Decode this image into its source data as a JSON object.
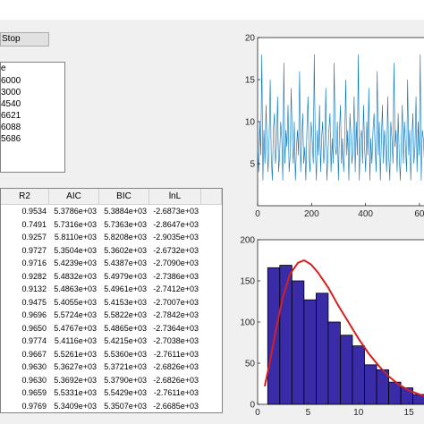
{
  "controls": {
    "stop_label": "Stop"
  },
  "listbox": {
    "header": "e",
    "items": [
      "6000",
      "3000",
      "4540",
      "6621",
      "6088",
      "5686"
    ]
  },
  "table": {
    "columns": [
      "R2",
      "AIC",
      "BIC",
      "lnL"
    ],
    "rows": [
      [
        "0.9534",
        "5.3786e+03",
        "5.3884e+03",
        "-2.6873e+03"
      ],
      [
        "0.7491",
        "5.7316e+03",
        "5.7363e+03",
        "-2.8647e+03"
      ],
      [
        "0.9257",
        "5.8110e+03",
        "5.8208e+03",
        "-2.9035e+03"
      ],
      [
        "0.9727",
        "5.3504e+03",
        "5.3602e+03",
        "-2.6732e+03"
      ],
      [
        "0.9716",
        "5.4239e+03",
        "5.4387e+03",
        "-2.7090e+03"
      ],
      [
        "0.9282",
        "5.4832e+03",
        "5.4979e+03",
        "-2.7386e+03"
      ],
      [
        "0.9132",
        "5.4863e+03",
        "5.4961e+03",
        "-2.7412e+03"
      ],
      [
        "0.9475",
        "5.4055e+03",
        "5.4153e+03",
        "-2.7007e+03"
      ],
      [
        "0.9696",
        "5.5724e+03",
        "5.5822e+03",
        "-2.7842e+03"
      ],
      [
        "0.9650",
        "5.4767e+03",
        "5.4865e+03",
        "-2.7364e+03"
      ],
      [
        "0.9774",
        "5.4116e+03",
        "5.4215e+03",
        "-2.7038e+03"
      ],
      [
        "0.9667",
        "5.5261e+03",
        "5.5360e+03",
        "-2.7611e+03"
      ],
      [
        "0.9630",
        "5.3627e+03",
        "5.3721e+03",
        "-2.6826e+03"
      ],
      [
        "0.9630",
        "5.3692e+03",
        "5.3790e+03",
        "-2.6826e+03"
      ],
      [
        "0.9659",
        "5.5331e+03",
        "5.5429e+03",
        "-2.7611e+03"
      ],
      [
        "0.9769",
        "5.3409e+03",
        "5.3507e+03",
        "-2.6685e+03"
      ]
    ]
  },
  "chart_data": [
    {
      "type": "line",
      "x_ticks": [
        "0",
        "200",
        "400",
        "60"
      ],
      "y_ticks": [
        "5",
        "10",
        "15",
        "20"
      ],
      "xlim": [
        0,
        650
      ],
      "ylim": [
        0,
        20
      ],
      "grid": false,
      "color": "#0072bd",
      "series": [
        {
          "values": [
            7,
            4,
            10,
            6,
            18,
            3,
            9,
            5,
            12,
            7,
            4,
            8,
            15,
            6,
            3,
            9,
            11,
            5,
            7,
            13,
            4,
            6,
            10,
            8,
            3,
            17,
            5,
            9,
            7,
            12,
            4,
            6,
            14,
            8,
            5,
            10,
            3,
            7,
            9,
            6,
            16,
            4,
            8,
            11,
            5,
            7,
            3,
            9,
            13,
            6,
            4,
            10,
            8,
            5,
            18,
            7,
            3,
            9,
            6,
            12,
            4,
            8,
            10,
            5,
            7,
            14,
            3,
            6,
            9,
            11,
            4,
            8,
            5,
            17,
            7,
            6,
            10,
            3,
            9,
            12,
            5,
            8,
            4,
            7,
            15,
            6,
            9,
            3,
            11,
            8,
            5,
            7,
            13,
            4,
            10,
            6,
            18,
            3,
            8,
            9,
            5,
            12,
            7,
            4,
            10,
            6,
            14,
            3,
            8,
            5,
            9,
            11,
            7,
            4,
            16,
            6,
            10,
            3,
            8,
            12,
            5,
            9,
            7,
            4,
            13,
            6,
            3,
            10,
            8,
            5,
            17,
            7,
            9,
            4,
            11,
            6,
            3,
            8,
            12,
            5,
            10,
            7,
            4,
            15,
            6,
            9,
            3,
            8,
            11,
            5,
            7,
            13,
            4,
            10,
            6,
            18,
            3,
            9,
            8,
            5,
            12,
            7,
            4,
            10,
            6,
            14,
            3,
            8,
            5,
            9,
            16,
            7,
            4,
            11,
            6,
            10,
            3,
            8,
            12,
            5
          ]
        }
      ]
    },
    {
      "type": "bar",
      "x_ticks": [
        "0",
        "5",
        "10",
        "15"
      ],
      "y_ticks": [
        "0",
        "50",
        "100",
        "150",
        "200"
      ],
      "xlim": [
        0,
        16.5
      ],
      "ylim": [
        0,
        200
      ],
      "grid": false,
      "bar_color": "#3a2ba8",
      "curve_color": "#d62020",
      "bins": [
        {
          "x0": 1,
          "x1": 2.2,
          "value": 166
        },
        {
          "x0": 2.2,
          "x1": 3.4,
          "value": 169
        },
        {
          "x0": 3.4,
          "x1": 4.6,
          "value": 150
        },
        {
          "x0": 4.6,
          "x1": 5.8,
          "value": 127
        },
        {
          "x0": 5.8,
          "x1": 7.0,
          "value": 135
        },
        {
          "x0": 7.0,
          "x1": 8.2,
          "value": 100
        },
        {
          "x0": 8.2,
          "x1": 9.4,
          "value": 84
        },
        {
          "x0": 9.4,
          "x1": 10.6,
          "value": 71
        },
        {
          "x0": 10.6,
          "x1": 11.8,
          "value": 48
        },
        {
          "x0": 11.8,
          "x1": 13.0,
          "value": 42
        },
        {
          "x0": 13.0,
          "x1": 14.2,
          "value": 27
        },
        {
          "x0": 14.2,
          "x1": 15.4,
          "value": 20
        },
        {
          "x0": 15.4,
          "x1": 16.6,
          "value": 12
        }
      ],
      "curve": [
        [
          0.7,
          22
        ],
        [
          1.2,
          50
        ],
        [
          1.8,
          90
        ],
        [
          2.5,
          130
        ],
        [
          3.2,
          158
        ],
        [
          4.0,
          172
        ],
        [
          4.6,
          175
        ],
        [
          5.3,
          170
        ],
        [
          6.0,
          160
        ],
        [
          7.0,
          142
        ],
        [
          8.0,
          120
        ],
        [
          9.0,
          100
        ],
        [
          10.0,
          80
        ],
        [
          11.0,
          62
        ],
        [
          12.0,
          47
        ],
        [
          13.0,
          34
        ],
        [
          14.0,
          24
        ],
        [
          15.0,
          17
        ],
        [
          16.5,
          10
        ]
      ]
    }
  ]
}
